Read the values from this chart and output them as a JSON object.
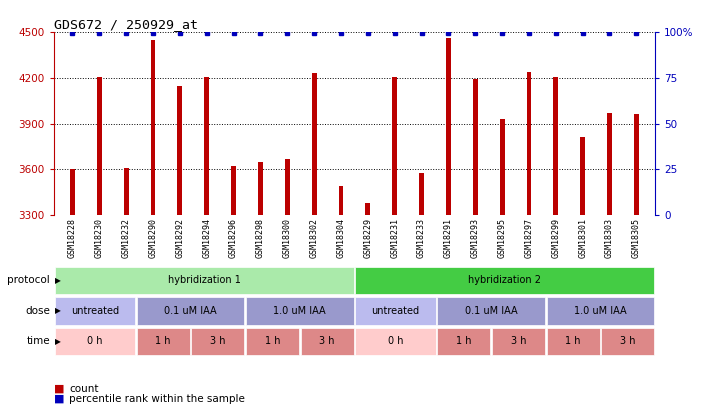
{
  "title": "GDS672 / 250929_at",
  "samples": [
    "GSM18228",
    "GSM18230",
    "GSM18232",
    "GSM18290",
    "GSM18292",
    "GSM18294",
    "GSM18296",
    "GSM18298",
    "GSM18300",
    "GSM18302",
    "GSM18304",
    "GSM18229",
    "GSM18231",
    "GSM18233",
    "GSM18291",
    "GSM18293",
    "GSM18295",
    "GSM18297",
    "GSM18299",
    "GSM18301",
    "GSM18303",
    "GSM18305"
  ],
  "counts": [
    3600,
    4205,
    3605,
    4450,
    4150,
    4205,
    3620,
    3645,
    3665,
    4230,
    3490,
    3380,
    4205,
    3575,
    4460,
    4190,
    3930,
    4240,
    4205,
    3810,
    3970,
    3960
  ],
  "ylim_left": [
    3300,
    4500
  ],
  "yticks_left": [
    3300,
    3600,
    3900,
    4200,
    4500
  ],
  "ylim_right": [
    0,
    100
  ],
  "yticks_right": [
    0,
    25,
    50,
    75,
    100
  ],
  "bar_color": "#bb0000",
  "dot_color": "#0000bb",
  "background_color": "#ffffff",
  "grid_color": "#000000",
  "left_tick_color": "#bb0000",
  "right_tick_color": "#0000bb",
  "protocol_segments": [
    {
      "text": "hybridization 1",
      "start": 0,
      "end": 11,
      "color": "#aaeaaa"
    },
    {
      "text": "hybridization 2",
      "start": 11,
      "end": 22,
      "color": "#44cc44"
    }
  ],
  "dose_segments": [
    {
      "text": "untreated",
      "start": 0,
      "end": 3,
      "color": "#bbbbee"
    },
    {
      "text": "0.1 uM IAA",
      "start": 3,
      "end": 7,
      "color": "#9999cc"
    },
    {
      "text": "1.0 uM IAA",
      "start": 7,
      "end": 11,
      "color": "#9999cc"
    },
    {
      "text": "untreated",
      "start": 11,
      "end": 14,
      "color": "#bbbbee"
    },
    {
      "text": "0.1 uM IAA",
      "start": 14,
      "end": 18,
      "color": "#9999cc"
    },
    {
      "text": "1.0 uM IAA",
      "start": 18,
      "end": 22,
      "color": "#9999cc"
    }
  ],
  "time_segments": [
    {
      "text": "0 h",
      "start": 0,
      "end": 3,
      "color": "#ffcccc"
    },
    {
      "text": "1 h",
      "start": 3,
      "end": 5,
      "color": "#dd8888"
    },
    {
      "text": "3 h",
      "start": 5,
      "end": 7,
      "color": "#dd8888"
    },
    {
      "text": "1 h",
      "start": 7,
      "end": 9,
      "color": "#dd8888"
    },
    {
      "text": "3 h",
      "start": 9,
      "end": 11,
      "color": "#dd8888"
    },
    {
      "text": "0 h",
      "start": 11,
      "end": 14,
      "color": "#ffcccc"
    },
    {
      "text": "1 h",
      "start": 14,
      "end": 16,
      "color": "#dd8888"
    },
    {
      "text": "3 h",
      "start": 16,
      "end": 18,
      "color": "#dd8888"
    },
    {
      "text": "1 h",
      "start": 18,
      "end": 20,
      "color": "#dd8888"
    },
    {
      "text": "3 h",
      "start": 20,
      "end": 22,
      "color": "#dd8888"
    }
  ],
  "row_labels": [
    "protocol",
    "dose",
    "time"
  ],
  "legend": [
    {
      "color": "#bb0000",
      "label": "count"
    },
    {
      "color": "#0000bb",
      "label": "percentile rank within the sample"
    }
  ],
  "xtick_bg": "#dddddd"
}
